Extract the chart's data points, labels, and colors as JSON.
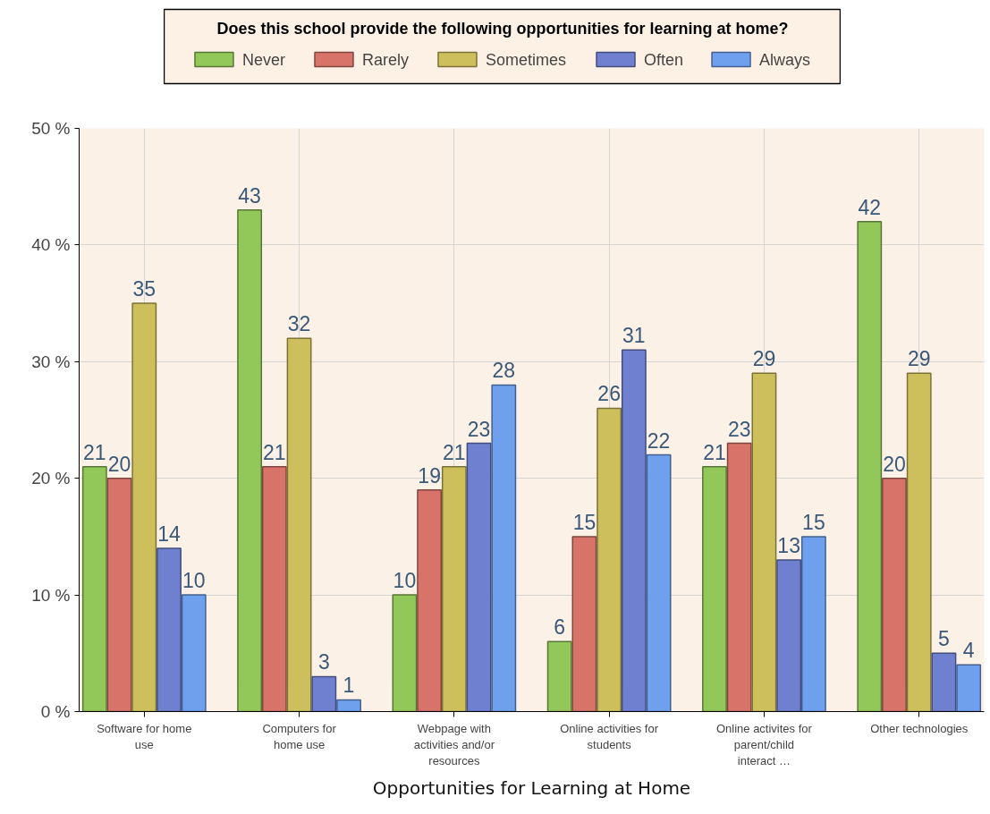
{
  "chart_data": {
    "type": "bar",
    "legend_title": "Does this school provide the following opportunities for learning at home?",
    "xlabel": "Opportunities for Learning at Home",
    "categories": [
      "Software for home use",
      "Computers for home use",
      "Webpage with activities and/or resources",
      "Online activities for students",
      "Online activites for parent/child interact …",
      "Other technologies"
    ],
    "series": [
      {
        "name": "Never",
        "color": "#92c75a",
        "values": [
          21,
          43,
          10,
          6,
          21,
          42
        ]
      },
      {
        "name": "Rarely",
        "color": "#d8736a",
        "values": [
          20,
          21,
          19,
          15,
          23,
          20
        ]
      },
      {
        "name": "Sometimes",
        "color": "#cdbf5c",
        "values": [
          35,
          32,
          21,
          26,
          29,
          29
        ]
      },
      {
        "name": "Often",
        "color": "#7080d0",
        "values": [
          14,
          3,
          23,
          31,
          13,
          5
        ]
      },
      {
        "name": "Always",
        "color": "#6fa0ee",
        "values": [
          10,
          1,
          28,
          22,
          15,
          4
        ]
      }
    ],
    "ylim": [
      0,
      50
    ],
    "yticks": [
      {
        "value": 0,
        "label": "0 %"
      },
      {
        "value": 10,
        "label": "10 %"
      },
      {
        "value": 20,
        "label": "20 %"
      },
      {
        "value": 30,
        "label": "30 %"
      },
      {
        "value": 40,
        "label": "40 %"
      },
      {
        "value": 50,
        "label": "50 %"
      }
    ],
    "grid": true,
    "legend": "top",
    "data_labels": true
  }
}
